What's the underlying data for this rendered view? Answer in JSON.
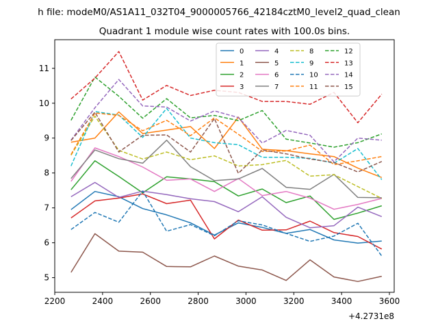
{
  "figure": {
    "suptitle": "h file: modeM0/AS1A11_032T04_9000005766_42184cztM0_level2_quad_clean",
    "offset_label": "+4.2731e8"
  },
  "chart_data": {
    "type": "line",
    "title": "Quadrant 1 module wise count rates with 100.0s bins.",
    "xlabel": "",
    "ylabel": "",
    "xlim": [
      2200,
      3620
    ],
    "ylim": [
      4.58,
      11.82
    ],
    "xticks": [
      2200,
      2400,
      2600,
      2800,
      3000,
      3200,
      3400,
      3600
    ],
    "xtick_labels": [
      "2200",
      "2400",
      "2600",
      "2800",
      "3000",
      "3200",
      "3400",
      "3600"
    ],
    "yticks": [
      5,
      6,
      7,
      8,
      9,
      10,
      11
    ],
    "ytick_labels": [
      "5",
      "6",
      "7",
      "8",
      "9",
      "10",
      "11"
    ],
    "grid": false,
    "legend_position": "upper-right",
    "legend_columns": 4,
    "x": [
      2268,
      2368,
      2468,
      2568,
      2668,
      2768,
      2868,
      2968,
      3068,
      3168,
      3268,
      3368,
      3468,
      3568
    ],
    "series": [
      {
        "name": "0",
        "color": "#1f77b4",
        "dashed": false,
        "values": [
          6.95,
          7.47,
          7.32,
          6.98,
          6.8,
          6.57,
          6.22,
          6.57,
          6.44,
          6.27,
          6.38,
          6.08,
          5.99,
          6.05
        ]
      },
      {
        "name": "1",
        "color": "#ff7f0e",
        "dashed": false,
        "values": [
          8.88,
          9.0,
          9.75,
          9.13,
          9.23,
          9.33,
          8.7,
          9.6,
          8.68,
          8.64,
          8.55,
          8.47,
          8.14,
          7.87
        ]
      },
      {
        "name": "2",
        "color": "#2ca02c",
        "dashed": false,
        "values": [
          7.52,
          8.35,
          7.9,
          7.43,
          7.89,
          7.83,
          7.75,
          7.34,
          7.54,
          7.15,
          7.34,
          6.67,
          6.85,
          7.06
        ]
      },
      {
        "name": "3",
        "color": "#d62728",
        "dashed": false,
        "values": [
          6.71,
          7.2,
          7.28,
          7.4,
          7.12,
          7.22,
          6.11,
          6.65,
          6.36,
          6.37,
          6.62,
          6.29,
          6.18,
          5.82
        ]
      },
      {
        "name": "4",
        "color": "#9467bd",
        "dashed": false,
        "values": [
          7.32,
          7.73,
          7.3,
          7.48,
          7.38,
          7.26,
          7.18,
          6.89,
          7.32,
          6.73,
          6.43,
          6.49,
          7.02,
          6.75
        ]
      },
      {
        "name": "5",
        "color": "#8c564b",
        "dashed": false,
        "values": [
          5.15,
          6.26,
          5.76,
          5.73,
          5.32,
          5.31,
          5.62,
          5.33,
          5.22,
          4.92,
          5.51,
          5.02,
          4.89,
          5.04
        ]
      },
      {
        "name": "6",
        "color": "#e377c2",
        "dashed": false,
        "values": [
          7.76,
          8.72,
          8.47,
          8.17,
          7.79,
          7.83,
          7.47,
          7.84,
          7.35,
          7.47,
          7.28,
          6.96,
          7.1,
          7.27
        ]
      },
      {
        "name": "7",
        "color": "#7f7f7f",
        "dashed": false,
        "values": [
          7.84,
          8.66,
          8.41,
          8.28,
          8.94,
          8.18,
          7.78,
          7.83,
          8.13,
          7.59,
          7.53,
          7.96,
          7.3,
          7.29
        ]
      },
      {
        "name": "8",
        "color": "#bcbd22",
        "dashed": true,
        "values": [
          8.51,
          9.63,
          8.65,
          8.4,
          8.6,
          8.38,
          8.49,
          8.2,
          8.24,
          8.36,
          7.91,
          7.95,
          7.61,
          7.27
        ]
      },
      {
        "name": "9",
        "color": "#17becf",
        "dashed": true,
        "values": [
          8.2,
          9.76,
          9.66,
          9.02,
          9.85,
          9.0,
          8.87,
          8.81,
          8.45,
          8.45,
          8.42,
          8.28,
          8.7,
          7.81
        ]
      },
      {
        "name": "10",
        "color": "#1f77b4",
        "dashed": true,
        "values": [
          6.38,
          6.87,
          6.59,
          7.48,
          6.33,
          6.52,
          6.2,
          6.63,
          6.51,
          6.27,
          6.04,
          6.19,
          6.56,
          5.62
        ]
      },
      {
        "name": "11",
        "color": "#ff7f0e",
        "dashed": true,
        "values": [
          8.53,
          9.72,
          9.65,
          9.21,
          9.51,
          9.07,
          9.58,
          9.11,
          8.62,
          8.63,
          8.8,
          8.24,
          8.35,
          8.47
        ]
      },
      {
        "name": "12",
        "color": "#2ca02c",
        "dashed": true,
        "values": [
          9.51,
          10.75,
          10.2,
          9.57,
          10.13,
          9.58,
          9.65,
          9.5,
          9.79,
          8.97,
          8.86,
          8.74,
          8.87,
          9.12
        ]
      },
      {
        "name": "13",
        "color": "#d62728",
        "dashed": true,
        "values": [
          10.12,
          10.72,
          11.48,
          10.09,
          10.51,
          10.22,
          10.37,
          10.31,
          10.05,
          10.05,
          9.97,
          10.31,
          9.44,
          10.26
        ]
      },
      {
        "name": "14",
        "color": "#9467bd",
        "dashed": true,
        "values": [
          8.94,
          9.87,
          10.68,
          9.92,
          9.89,
          9.49,
          9.78,
          9.59,
          8.86,
          9.22,
          9.08,
          8.32,
          9.0,
          8.94
        ]
      },
      {
        "name": "15",
        "color": "#8c564b",
        "dashed": true,
        "values": [
          8.93,
          9.74,
          8.6,
          9.08,
          9.09,
          8.6,
          9.56,
          7.99,
          8.66,
          8.55,
          8.4,
          8.3,
          8.03,
          8.33
        ]
      }
    ]
  }
}
